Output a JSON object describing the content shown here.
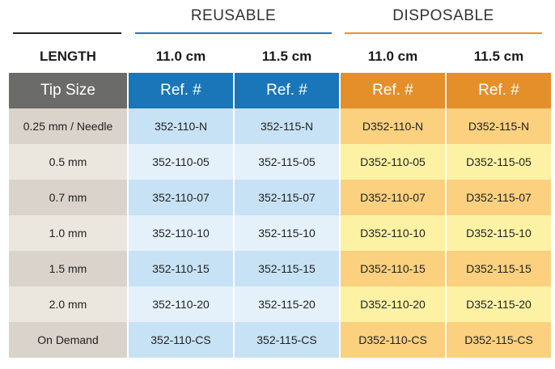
{
  "groups": {
    "reusable": "REUSABLE",
    "disposable": "DISPOSABLE"
  },
  "length_row": {
    "label": "LENGTH",
    "values": [
      "11.0 cm",
      "11.5 cm",
      "11.0 cm",
      "11.5 cm"
    ]
  },
  "table": {
    "headers": [
      "Tip Size",
      "Ref. #",
      "Ref. #",
      "Ref. #",
      "Ref. #"
    ],
    "rows": [
      [
        "0.25 mm / Needle",
        "352-110-N",
        "352-115-N",
        "D352-110-N",
        "D352-115-N"
      ],
      [
        "0.5 mm",
        "352-110-05",
        "352-115-05",
        "D352-110-05",
        "D352-115-05"
      ],
      [
        "0.7 mm",
        "352-110-07",
        "352-115-07",
        "D352-110-07",
        "D352-115-07"
      ],
      [
        "1.0 mm",
        "352-110-10",
        "352-115-10",
        "D352-110-10",
        "D352-115-10"
      ],
      [
        "1.5 mm",
        "352-110-15",
        "352-115-15",
        "D352-110-15",
        "D352-115-15"
      ],
      [
        "2.0 mm",
        "352-110-20",
        "352-115-20",
        "D352-110-20",
        "D352-115-20"
      ],
      [
        "On Demand",
        "352-110-CS",
        "352-115-CS",
        "D352-110-CS",
        "D352-115-CS"
      ]
    ]
  },
  "colors": {
    "reusable_accent": "#1a76b8",
    "disposable_accent": "#e48f2a",
    "tip_header": "#6b6b69"
  }
}
